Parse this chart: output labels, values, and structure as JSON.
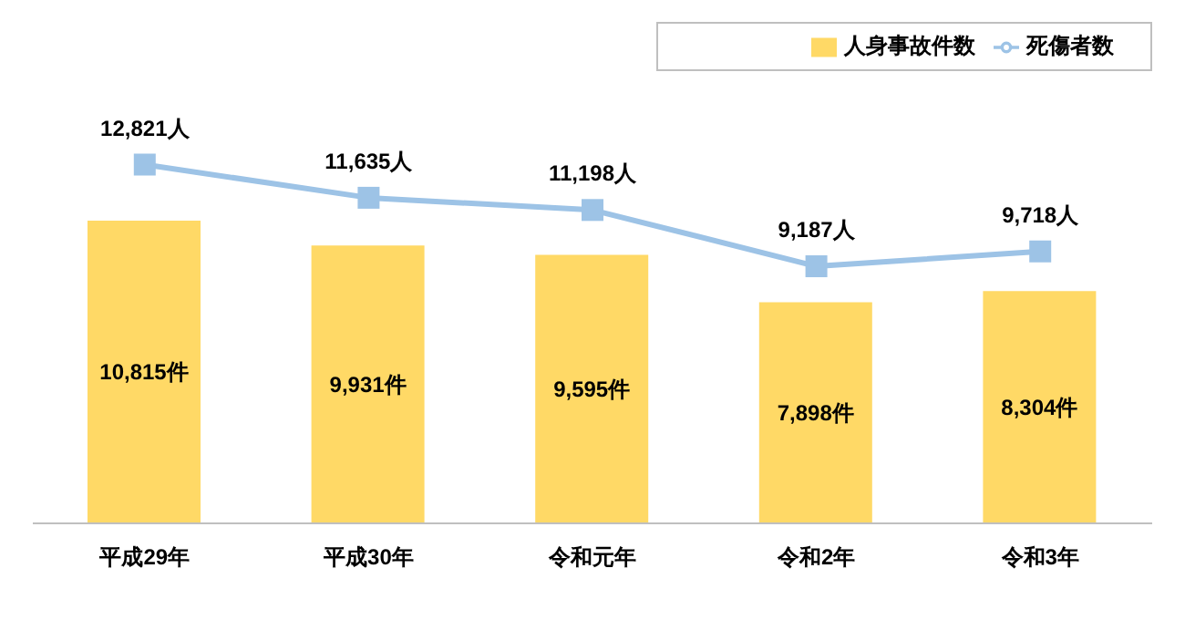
{
  "chart_data": {
    "type": "bar",
    "categories": [
      "平成29年",
      "平成30年",
      "令和元年",
      "令和2年",
      "令和3年"
    ],
    "series": [
      {
        "name": "人身事故件数",
        "color": "#ffd966",
        "values": [
          10815,
          9931,
          9595,
          7898,
          8304
        ],
        "value_labels": [
          "10,815件",
          "9,931件",
          "9,595件",
          "7,898件",
          "8,304件"
        ]
      },
      {
        "name": "死傷者数",
        "type": "line",
        "color": "#9dc3e6",
        "marker": "square",
        "values": [
          12821,
          11635,
          11198,
          9187,
          9718
        ],
        "value_labels": [
          "12,821人",
          "11,635人",
          "11,198人",
          "9,187人",
          "9,718人"
        ]
      }
    ],
    "legend": "top right",
    "grid": false
  }
}
